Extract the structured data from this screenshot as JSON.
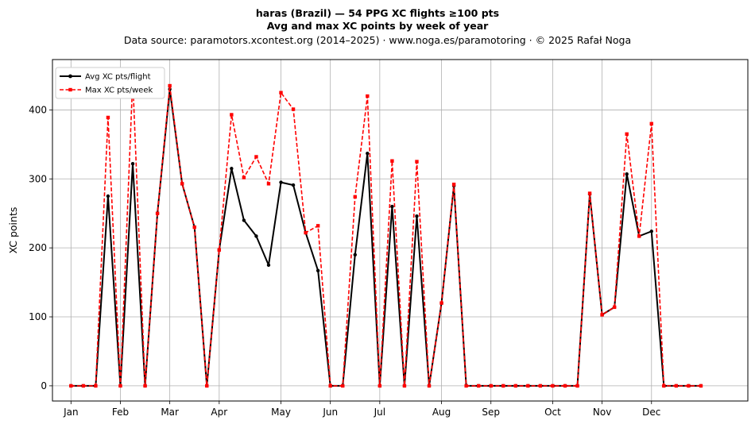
{
  "chart_data": {
    "type": "line",
    "title_lines": [
      "haras (Brazil)  —  54 PPG XC flights ≥100 pts",
      "Avg and max XC points by week of year"
    ],
    "subtitle": "Data source: paramotors.xcontest.org (2014–2025)  ·  www.noga.es/paramotoring  ·  © 2025 Rafał Noga",
    "xlabel": "",
    "ylabel": "XC points",
    "xlim": [
      -1.5,
      54.8
    ],
    "ylim": [
      -22,
      473
    ],
    "x_ticks": [
      {
        "x": 0,
        "label": "Jan"
      },
      {
        "x": 4,
        "label": "Feb"
      },
      {
        "x": 8,
        "label": "Mar"
      },
      {
        "x": 12,
        "label": "Apr"
      },
      {
        "x": 17,
        "label": "May"
      },
      {
        "x": 21,
        "label": "Jun"
      },
      {
        "x": 25,
        "label": "Jul"
      },
      {
        "x": 30,
        "label": "Aug"
      },
      {
        "x": 34,
        "label": "Sep"
      },
      {
        "x": 39,
        "label": "Oct"
      },
      {
        "x": 43,
        "label": "Nov"
      },
      {
        "x": 47,
        "label": "Dec"
      }
    ],
    "y_ticks": [
      0,
      100,
      200,
      300,
      400
    ],
    "grid": true,
    "legend_position": "top-left",
    "x": [
      0,
      1,
      2,
      3,
      4,
      5,
      6,
      7,
      8,
      9,
      10,
      11,
      12,
      13,
      14,
      15,
      16,
      17,
      18,
      19,
      20,
      21,
      22,
      23,
      24,
      25,
      26,
      27,
      28,
      29,
      30,
      31,
      32,
      33,
      34,
      35,
      36,
      37,
      38,
      39,
      40,
      41,
      42,
      43,
      44,
      45,
      46,
      47,
      48,
      49,
      50,
      51
    ],
    "series": [
      {
        "name": "Avg XC pts/flight",
        "color": "#000000",
        "style": "solid",
        "marker": "circle",
        "values": [
          0,
          0,
          0,
          275,
          0,
          322,
          0,
          250,
          430,
          293,
          230,
          0,
          197,
          315,
          240,
          217,
          175,
          295,
          291,
          222,
          167,
          0,
          0,
          190,
          337,
          0,
          260,
          0,
          246,
          0,
          120,
          290,
          0,
          0,
          0,
          0,
          0,
          0,
          0,
          0,
          0,
          0,
          278,
          103,
          114,
          307,
          217,
          224,
          0,
          0,
          0,
          0
        ]
      },
      {
        "name": "Max XC pts/week",
        "color": "#ff0000",
        "style": "dashed",
        "marker": "square",
        "values": [
          0,
          0,
          0,
          389,
          0,
          445,
          0,
          250,
          435,
          293,
          230,
          0,
          197,
          393,
          302,
          332,
          293,
          425,
          401,
          222,
          232,
          0,
          0,
          274,
          420,
          0,
          326,
          0,
          325,
          0,
          120,
          292,
          0,
          0,
          0,
          0,
          0,
          0,
          0,
          0,
          0,
          0,
          279,
          103,
          114,
          365,
          217,
          380,
          0,
          0,
          0,
          0
        ]
      }
    ]
  }
}
